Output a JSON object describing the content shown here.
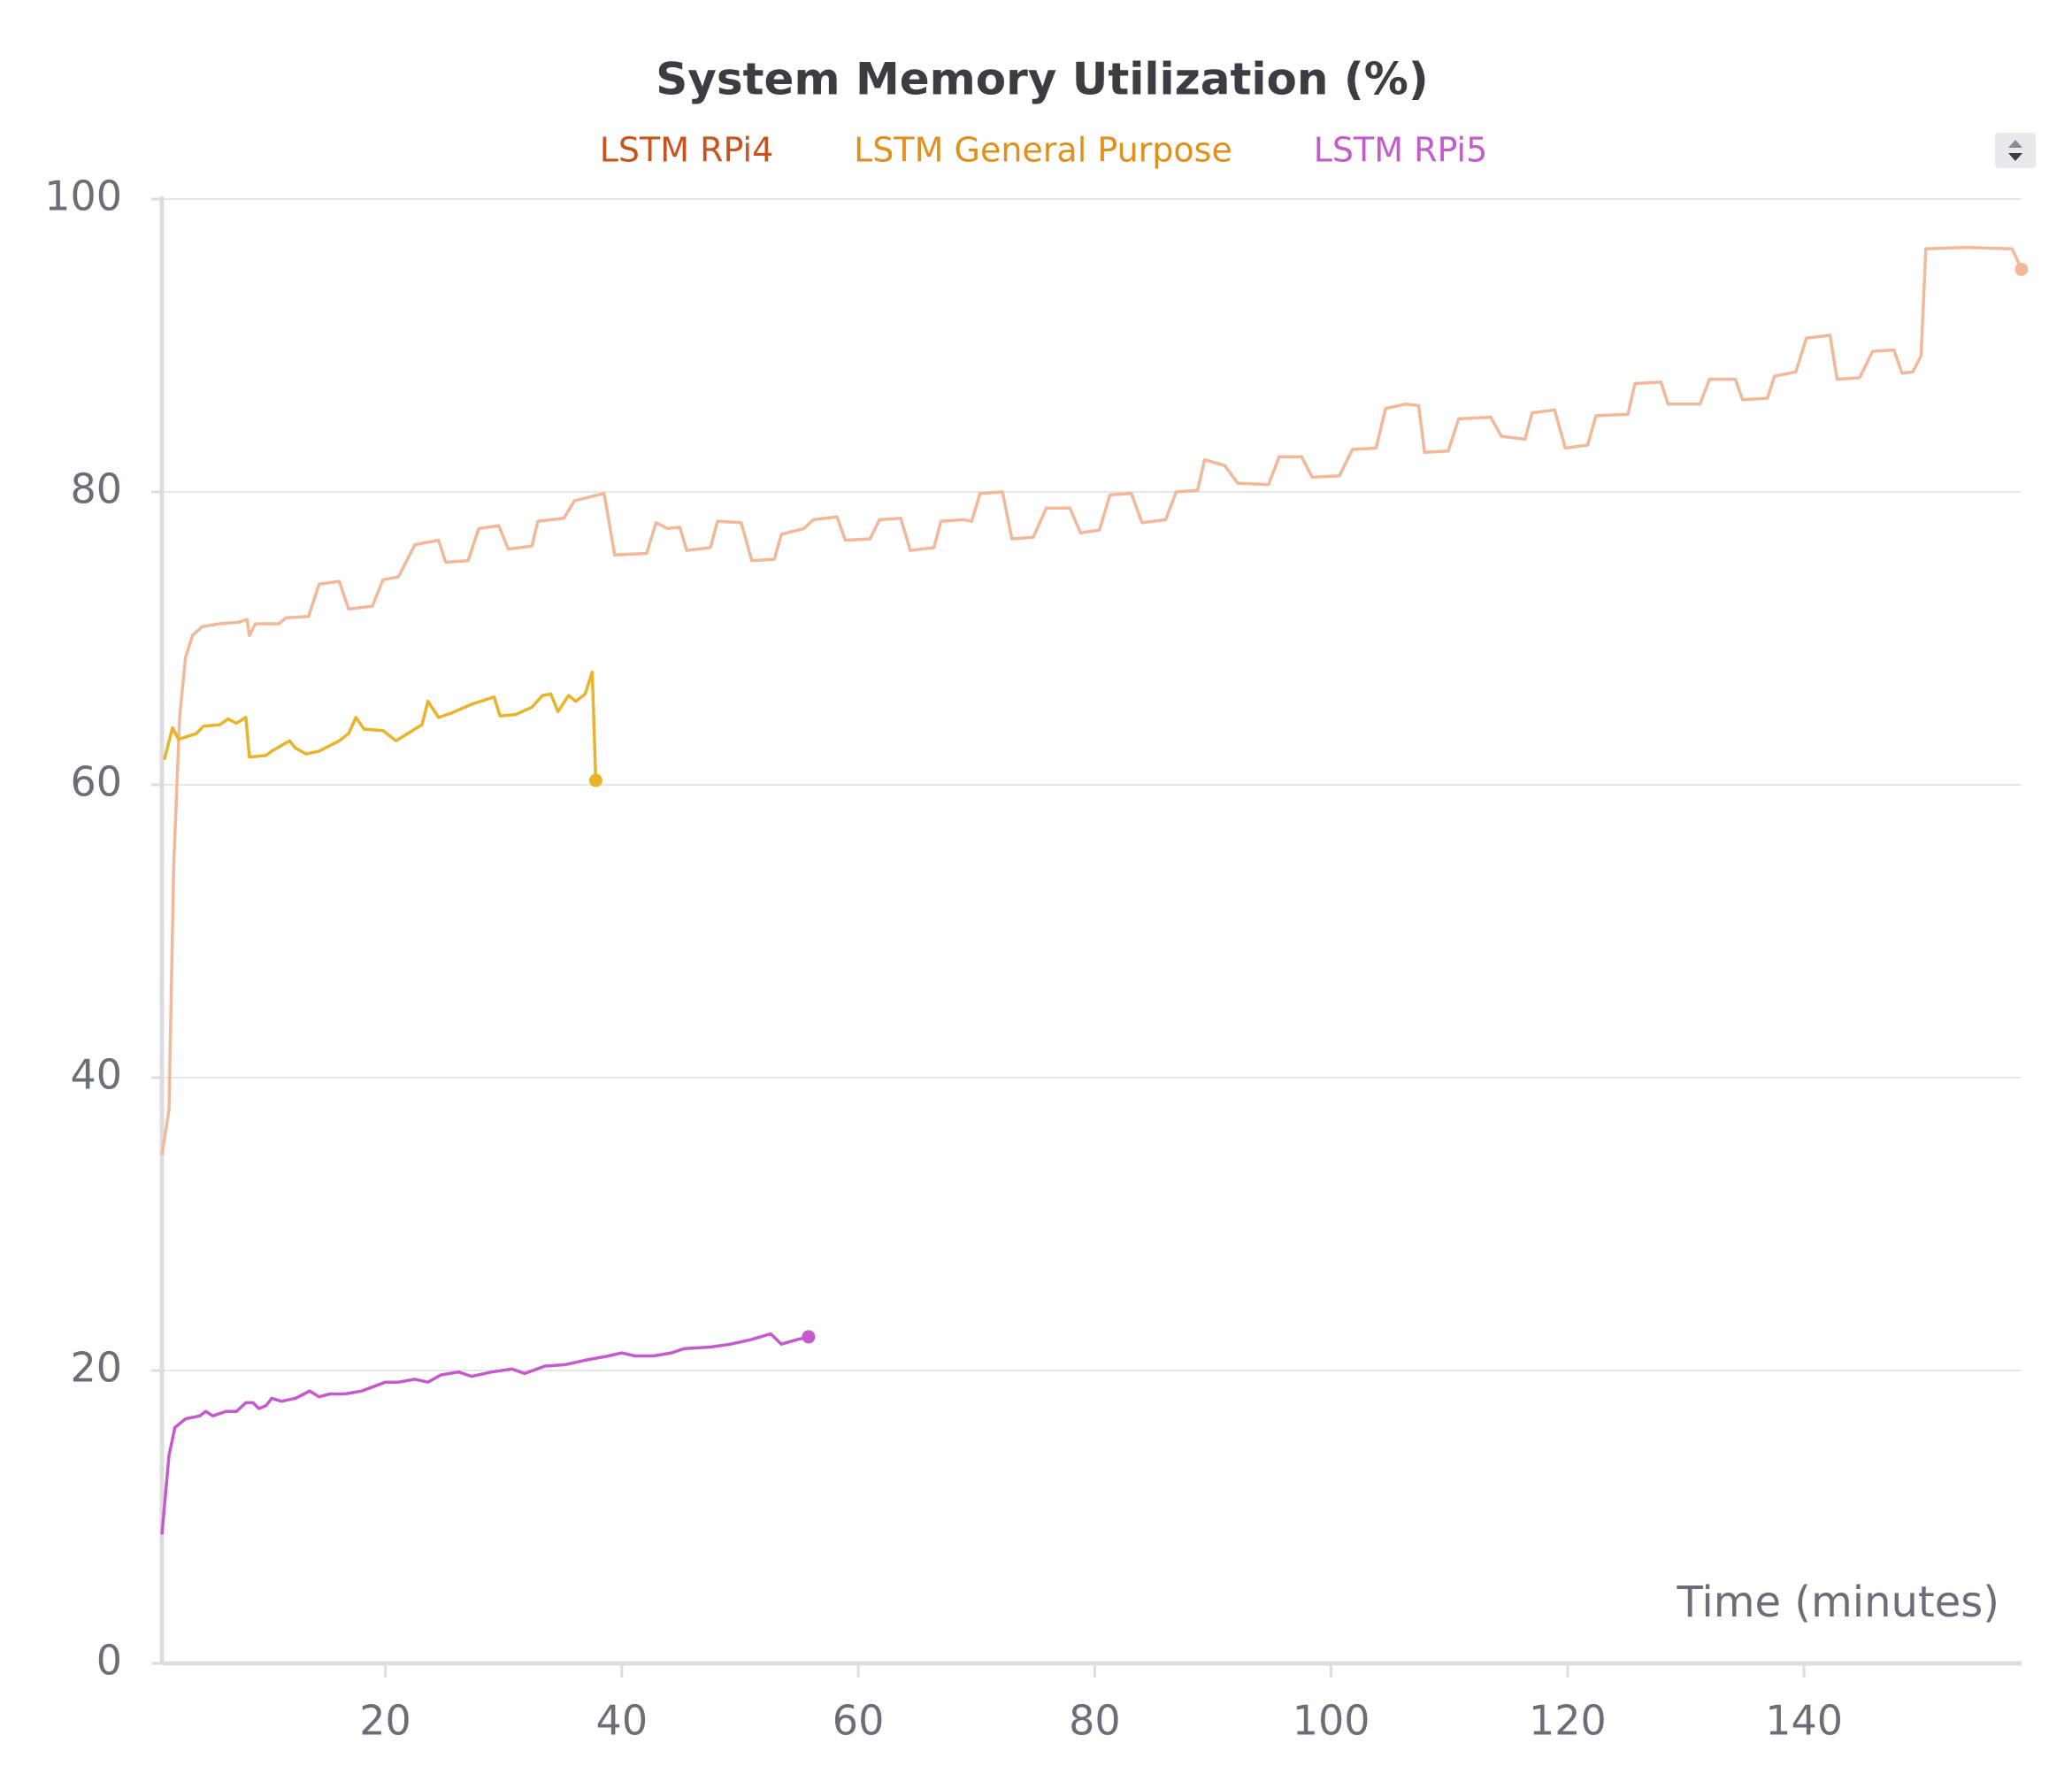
{
  "chart_data": {
    "type": "line",
    "title": "System Memory Utilization (%)",
    "x_label": "Time (minutes)",
    "xlim": [
      1.1,
      158.4
    ],
    "xticks": [
      20,
      40,
      60,
      80,
      100,
      120,
      140
    ],
    "ylim": [
      0,
      100
    ],
    "yticks": [
      0,
      20,
      40,
      60,
      80,
      100
    ],
    "grid": true,
    "legend_position": "top",
    "series": [
      {
        "name": "LSTM RPi4",
        "color": "#f2b899",
        "legend_color": "#c8531d",
        "x": [
          1.1,
          1.7,
          2.1,
          2.6,
          3.1,
          3.7,
          4.5,
          6.0,
          7.6,
          8.3,
          8.5,
          9.0,
          11.0,
          11.6,
          13.5,
          14.4,
          16.1,
          16.9,
          18.9,
          19.8,
          21.1,
          22.5,
          24.5,
          25.1,
          27.0,
          27.9,
          29.6,
          30.4,
          32.4,
          32.9,
          35.1,
          36.0,
          38.5,
          39.4,
          42.1,
          42.9,
          43.9,
          44.9,
          45.5,
          47.5,
          48.1,
          50.1,
          51.0,
          52.9,
          53.5,
          55.4,
          56.2,
          58.2,
          58.9,
          61.0,
          61.8,
          63.6,
          64.4,
          66.4,
          67.0,
          68.9,
          69.6,
          70.3,
          72.2,
          73.0,
          74.8,
          75.9,
          77.9,
          78.8,
          80.4,
          81.3,
          83.1,
          84.0,
          86.0,
          86.9,
          88.7,
          89.3,
          91.0,
          92.1,
          94.7,
          95.6,
          97.5,
          98.4,
          100.7,
          101.8,
          103.8,
          104.6,
          106.3,
          107.4,
          107.9,
          109.9,
          110.8,
          113.5,
          114.4,
          116.4,
          117.0,
          118.9,
          119.8,
          121.7,
          122.4,
          125.1,
          125.7,
          127.9,
          128.5,
          131.2,
          132.0,
          134.2,
          134.8,
          136.9,
          137.5,
          139.3,
          140.2,
          142.2,
          142.8,
          144.7,
          145.8,
          147.6,
          148.3,
          149.2,
          149.9,
          150.3,
          153.7,
          157.6,
          158.4
        ],
        "values": [
          34.7,
          37.8,
          54.6,
          64.6,
          68.7,
          70.2,
          70.8,
          71.0,
          71.1,
          71.3,
          70.2,
          71.0,
          71.0,
          71.4,
          71.5,
          73.7,
          73.9,
          72.0,
          72.2,
          74.0,
          74.2,
          76.4,
          76.7,
          75.2,
          75.3,
          77.5,
          77.7,
          76.1,
          76.3,
          78.0,
          78.2,
          79.4,
          79.9,
          75.7,
          75.8,
          77.9,
          77.5,
          77.6,
          76.0,
          76.2,
          78.0,
          77.9,
          75.3,
          75.4,
          77.1,
          77.5,
          78.1,
          78.3,
          76.7,
          76.8,
          78.1,
          78.2,
          76.0,
          76.2,
          78.0,
          78.1,
          78.0,
          79.9,
          80.0,
          76.8,
          76.9,
          78.9,
          78.9,
          77.2,
          77.4,
          79.8,
          79.9,
          77.9,
          78.1,
          80.0,
          80.1,
          82.2,
          81.8,
          80.6,
          80.5,
          82.4,
          82.4,
          81.0,
          81.1,
          82.9,
          83.0,
          85.7,
          86.0,
          85.9,
          82.7,
          82.8,
          85.0,
          85.1,
          83.8,
          83.6,
          85.4,
          85.6,
          83.0,
          83.2,
          85.2,
          85.3,
          87.4,
          87.5,
          86.0,
          86.0,
          87.7,
          87.7,
          86.3,
          86.4,
          87.9,
          88.2,
          90.5,
          90.7,
          87.7,
          87.8,
          89.6,
          89.7,
          88.1,
          88.2,
          89.3,
          96.6,
          96.7,
          96.6,
          95.2
        ]
      },
      {
        "name": "LSTM General Purpose",
        "color": "#e8b42c",
        "legend_color": "#e0901b",
        "x": [
          1.3,
          2.0,
          2.5,
          4.0,
          4.6,
          6.0,
          6.7,
          7.4,
          8.2,
          8.5,
          9.9,
          10.4,
          11.9,
          12.4,
          13.3,
          14.4,
          16.1,
          16.9,
          17.5,
          18.2,
          19.8,
          20.9,
          23.1,
          23.6,
          24.5,
          25.6,
          27.3,
          29.2,
          29.7,
          31.0,
          32.4,
          33.3,
          34.0,
          34.6,
          35.5,
          36.1,
          36.9,
          37.5,
          37.8
        ],
        "values": [
          61.7,
          63.9,
          63.1,
          63.5,
          64.0,
          64.1,
          64.5,
          64.2,
          64.6,
          61.9,
          62.0,
          62.3,
          63.0,
          62.5,
          62.1,
          62.3,
          63.0,
          63.5,
          64.6,
          63.8,
          63.7,
          63.0,
          64.1,
          65.7,
          64.6,
          64.9,
          65.5,
          66.0,
          64.7,
          64.8,
          65.3,
          66.1,
          66.2,
          65.0,
          66.1,
          65.7,
          66.2,
          67.7,
          60.3
        ]
      },
      {
        "name": "LSTM RPi5",
        "color": "#c45acb",
        "legend_color": "#c35bcc",
        "x": [
          1.1,
          1.7,
          2.2,
          3.1,
          4.3,
          4.8,
          5.4,
          6.5,
          7.4,
          8.2,
          8.8,
          9.3,
          9.9,
          10.4,
          11.2,
          12.4,
          13.6,
          14.4,
          15.3,
          16.6,
          18.0,
          20.0,
          21.1,
          22.5,
          23.6,
          24.7,
          26.2,
          27.3,
          29.0,
          30.7,
          31.8,
          33.5,
          35.2,
          36.9,
          38.9,
          40.0,
          41.1,
          42.7,
          44.2,
          45.3,
          47.5,
          49.2,
          50.9,
          52.6,
          53.5,
          54.8,
          55.8
        ],
        "values": [
          8.8,
          14.2,
          16.1,
          16.7,
          16.9,
          17.2,
          16.9,
          17.2,
          17.2,
          17.8,
          17.8,
          17.4,
          17.6,
          18.1,
          17.9,
          18.1,
          18.6,
          18.2,
          18.4,
          18.4,
          18.6,
          19.2,
          19.2,
          19.4,
          19.2,
          19.7,
          19.9,
          19.6,
          19.9,
          20.1,
          19.8,
          20.3,
          20.4,
          20.7,
          21.0,
          21.2,
          21.0,
          21.0,
          21.2,
          21.5,
          21.6,
          21.8,
          22.1,
          22.5,
          21.8,
          22.1,
          22.3
        ]
      }
    ]
  }
}
